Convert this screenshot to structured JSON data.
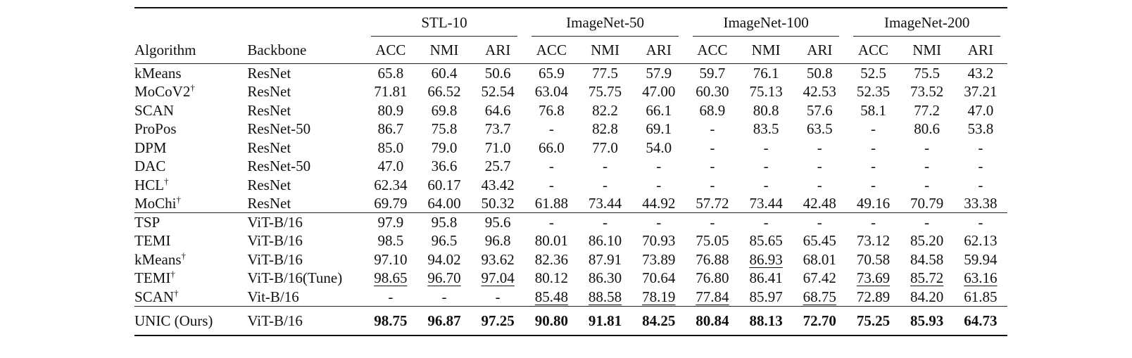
{
  "table": {
    "group_headers": [
      "STL-10",
      "ImageNet-50",
      "ImageNet-100",
      "ImageNet-200"
    ],
    "col_headers": [
      "Algorithm",
      "Backbone",
      "ACC",
      "NMI",
      "ARI",
      "ACC",
      "NMI",
      "ARI",
      "ACC",
      "NMI",
      "ARI",
      "ACC",
      "NMI",
      "ARI"
    ],
    "dagger": "†",
    "sections": [
      [
        {
          "algo": "kMeans",
          "dagger": false,
          "backbone": "ResNet",
          "vals": [
            "65.8",
            "60.4",
            "50.6",
            "65.9",
            "77.5",
            "57.9",
            "59.7",
            "76.1",
            "50.8",
            "52.5",
            "75.5",
            "43.2"
          ]
        },
        {
          "algo": "MoCoV2",
          "dagger": true,
          "backbone": "ResNet",
          "vals": [
            "71.81",
            "66.52",
            "52.54",
            "63.04",
            "75.75",
            "47.00",
            "60.30",
            "75.13",
            "42.53",
            "52.35",
            "73.52",
            "37.21"
          ]
        },
        {
          "algo": "SCAN",
          "dagger": false,
          "backbone": "ResNet",
          "vals": [
            "80.9",
            "69.8",
            "64.6",
            "76.8",
            "82.2",
            "66.1",
            "68.9",
            "80.8",
            "57.6",
            "58.1",
            "77.2",
            "47.0"
          ]
        },
        {
          "algo": "ProPos",
          "dagger": false,
          "backbone": "ResNet-50",
          "vals": [
            "86.7",
            "75.8",
            "73.7",
            "-",
            "82.8",
            "69.1",
            "-",
            "83.5",
            "63.5",
            "-",
            "80.6",
            "53.8"
          ]
        },
        {
          "algo": "DPM",
          "dagger": false,
          "backbone": "ResNet",
          "vals": [
            "85.0",
            "79.0",
            "71.0",
            "66.0",
            "77.0",
            "54.0",
            "-",
            "-",
            "-",
            "-",
            "-",
            "-"
          ]
        },
        {
          "algo": "DAC",
          "dagger": false,
          "backbone": "ResNet-50",
          "vals": [
            "47.0",
            "36.6",
            "25.7",
            "-",
            "-",
            "-",
            "-",
            "-",
            "-",
            "-",
            "-",
            "-"
          ]
        },
        {
          "algo": "HCL",
          "dagger": true,
          "backbone": "ResNet",
          "vals": [
            "62.34",
            "60.17",
            "43.42",
            "-",
            "-",
            "-",
            "-",
            "-",
            "-",
            "-",
            "-",
            "-"
          ]
        },
        {
          "algo": "MoChi",
          "dagger": true,
          "backbone": "ResNet",
          "vals": [
            "69.79",
            "64.00",
            "50.32",
            "61.88",
            "73.44",
            "44.92",
            "57.72",
            "73.44",
            "42.48",
            "49.16",
            "70.79",
            "33.38"
          ]
        }
      ],
      [
        {
          "algo": "TSP",
          "dagger": false,
          "backbone": "ViT-B/16",
          "vals": [
            "97.9",
            "95.8",
            "95.6",
            "-",
            "-",
            "-",
            "-",
            "-",
            "-",
            "-",
            "-",
            "-"
          ]
        },
        {
          "algo": "TEMI",
          "dagger": false,
          "backbone": "ViT-B/16",
          "vals": [
            "98.5",
            "96.5",
            "96.8",
            "80.01",
            "86.10",
            "70.93",
            "75.05",
            "85.65",
            "65.45",
            "73.12",
            "85.20",
            "62.13"
          ]
        },
        {
          "algo": "kMeans",
          "dagger": true,
          "backbone": "ViT-B/16",
          "vals": [
            "97.10",
            "94.02",
            "93.62",
            "82.36",
            "87.91",
            "73.89",
            "76.88",
            "86.93",
            "68.01",
            "70.58",
            "84.58",
            "59.94"
          ],
          "underline": [
            7
          ]
        },
        {
          "algo": "TEMI",
          "dagger": true,
          "backbone": "ViT-B/16(Tune)",
          "vals": [
            "98.65",
            "96.70",
            "97.04",
            "80.12",
            "86.30",
            "70.64",
            "76.80",
            "86.41",
            "67.42",
            "73.69",
            "85.72",
            "63.16"
          ],
          "underline": [
            0,
            1,
            2,
            9,
            10,
            11
          ]
        },
        {
          "algo": "SCAN",
          "dagger": true,
          "backbone": "Vit-B/16",
          "vals": [
            "-",
            "-",
            "-",
            "85.48",
            "88.58",
            "78.19",
            "77.84",
            "85.97",
            "68.75",
            "72.89",
            "84.20",
            "61.85"
          ],
          "underline": [
            3,
            4,
            5,
            6,
            8
          ]
        }
      ]
    ],
    "final": {
      "algo": "UNIC (Ours)",
      "backbone": "ViT-B/16",
      "vals": [
        "98.75",
        "96.87",
        "97.25",
        "90.80",
        "91.81",
        "84.25",
        "80.84",
        "88.13",
        "72.70",
        "75.25",
        "85.93",
        "64.73"
      ]
    }
  }
}
